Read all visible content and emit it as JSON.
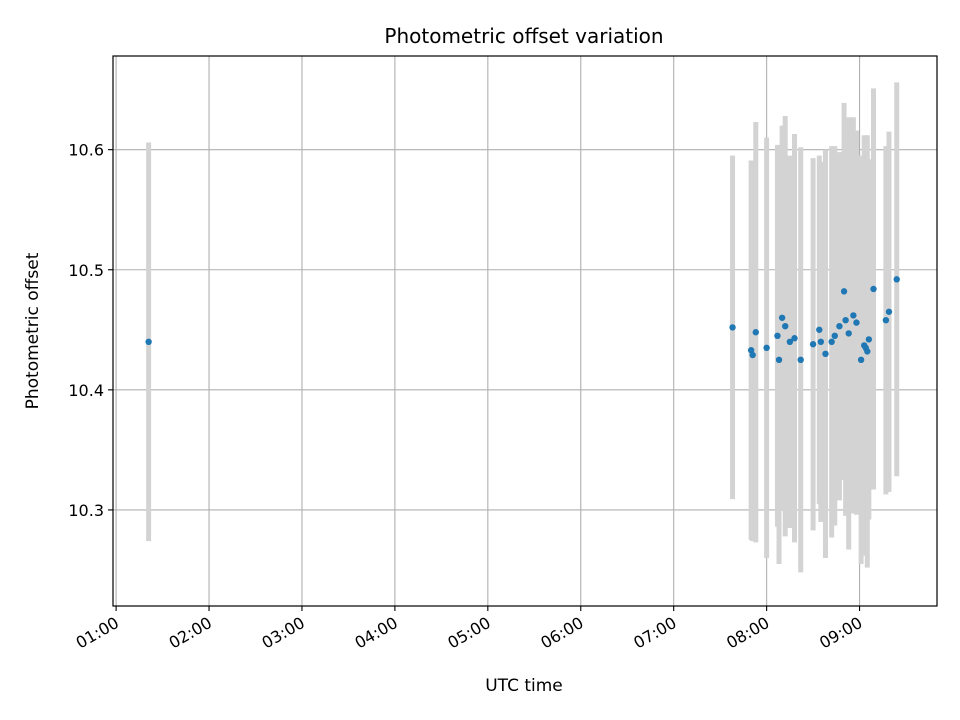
{
  "chart_data": {
    "type": "scatter",
    "title": "Photometric offset variation",
    "xlabel": "UTC time",
    "ylabel": "Photometric offset",
    "x_axis": {
      "type": "time",
      "min": "00:58",
      "max": "09:50"
    },
    "ylim": [
      10.22,
      10.678
    ],
    "x_ticks": [
      "01:00",
      "02:00",
      "03:00",
      "04:00",
      "05:00",
      "06:00",
      "07:00",
      "08:00",
      "09:00"
    ],
    "y_ticks": [
      10.3,
      10.4,
      10.5,
      10.6
    ],
    "grid": true,
    "legend": "none",
    "colors": {
      "point": "#1f77b4",
      "errorbar": "#d3d3d3",
      "grid": "#b0b0b0"
    },
    "points": [
      {
        "time": "01:21",
        "y": 10.44,
        "err": 0.166
      },
      {
        "time": "07:38",
        "y": 10.452,
        "err": 0.143
      },
      {
        "time": "07:50",
        "y": 10.433,
        "err": 0.158
      },
      {
        "time": "07:51",
        "y": 10.429,
        "err": 0.155
      },
      {
        "time": "07:53",
        "y": 10.448,
        "err": 0.175
      },
      {
        "time": "08:00",
        "y": 10.435,
        "err": 0.175
      },
      {
        "time": "08:07",
        "y": 10.445,
        "err": 0.159
      },
      {
        "time": "08:08",
        "y": 10.425,
        "err": 0.17
      },
      {
        "time": "08:10",
        "y": 10.46,
        "err": 0.16
      },
      {
        "time": "08:12",
        "y": 10.453,
        "err": 0.175
      },
      {
        "time": "08:15",
        "y": 10.44,
        "err": 0.155
      },
      {
        "time": "08:18",
        "y": 10.443,
        "err": 0.17
      },
      {
        "time": "08:22",
        "y": 10.425,
        "err": 0.177
      },
      {
        "time": "08:30",
        "y": 10.438,
        "err": 0.155
      },
      {
        "time": "08:34",
        "y": 10.45,
        "err": 0.145
      },
      {
        "time": "08:35",
        "y": 10.44,
        "err": 0.15
      },
      {
        "time": "08:38",
        "y": 10.43,
        "err": 0.17
      },
      {
        "time": "08:42",
        "y": 10.44,
        "err": 0.163
      },
      {
        "time": "08:44",
        "y": 10.445,
        "err": 0.158
      },
      {
        "time": "08:47",
        "y": 10.453,
        "err": 0.145
      },
      {
        "time": "08:50",
        "y": 10.482,
        "err": 0.157
      },
      {
        "time": "08:51",
        "y": 10.458,
        "err": 0.163
      },
      {
        "time": "08:53",
        "y": 10.447,
        "err": 0.18
      },
      {
        "time": "08:56",
        "y": 10.462,
        "err": 0.165
      },
      {
        "time": "08:58",
        "y": 10.456,
        "err": 0.16
      },
      {
        "time": "09:01",
        "y": 10.425,
        "err": 0.17
      },
      {
        "time": "09:03",
        "y": 10.437,
        "err": 0.175
      },
      {
        "time": "09:04",
        "y": 10.435,
        "err": 0.17
      },
      {
        "time": "09:05",
        "y": 10.432,
        "err": 0.18
      },
      {
        "time": "09:06",
        "y": 10.442,
        "err": 0.15
      },
      {
        "time": "09:09",
        "y": 10.484,
        "err": 0.167
      },
      {
        "time": "09:17",
        "y": 10.458,
        "err": 0.145
      },
      {
        "time": "09:19",
        "y": 10.465,
        "err": 0.15
      },
      {
        "time": "09:24",
        "y": 10.492,
        "err": 0.164
      }
    ]
  }
}
